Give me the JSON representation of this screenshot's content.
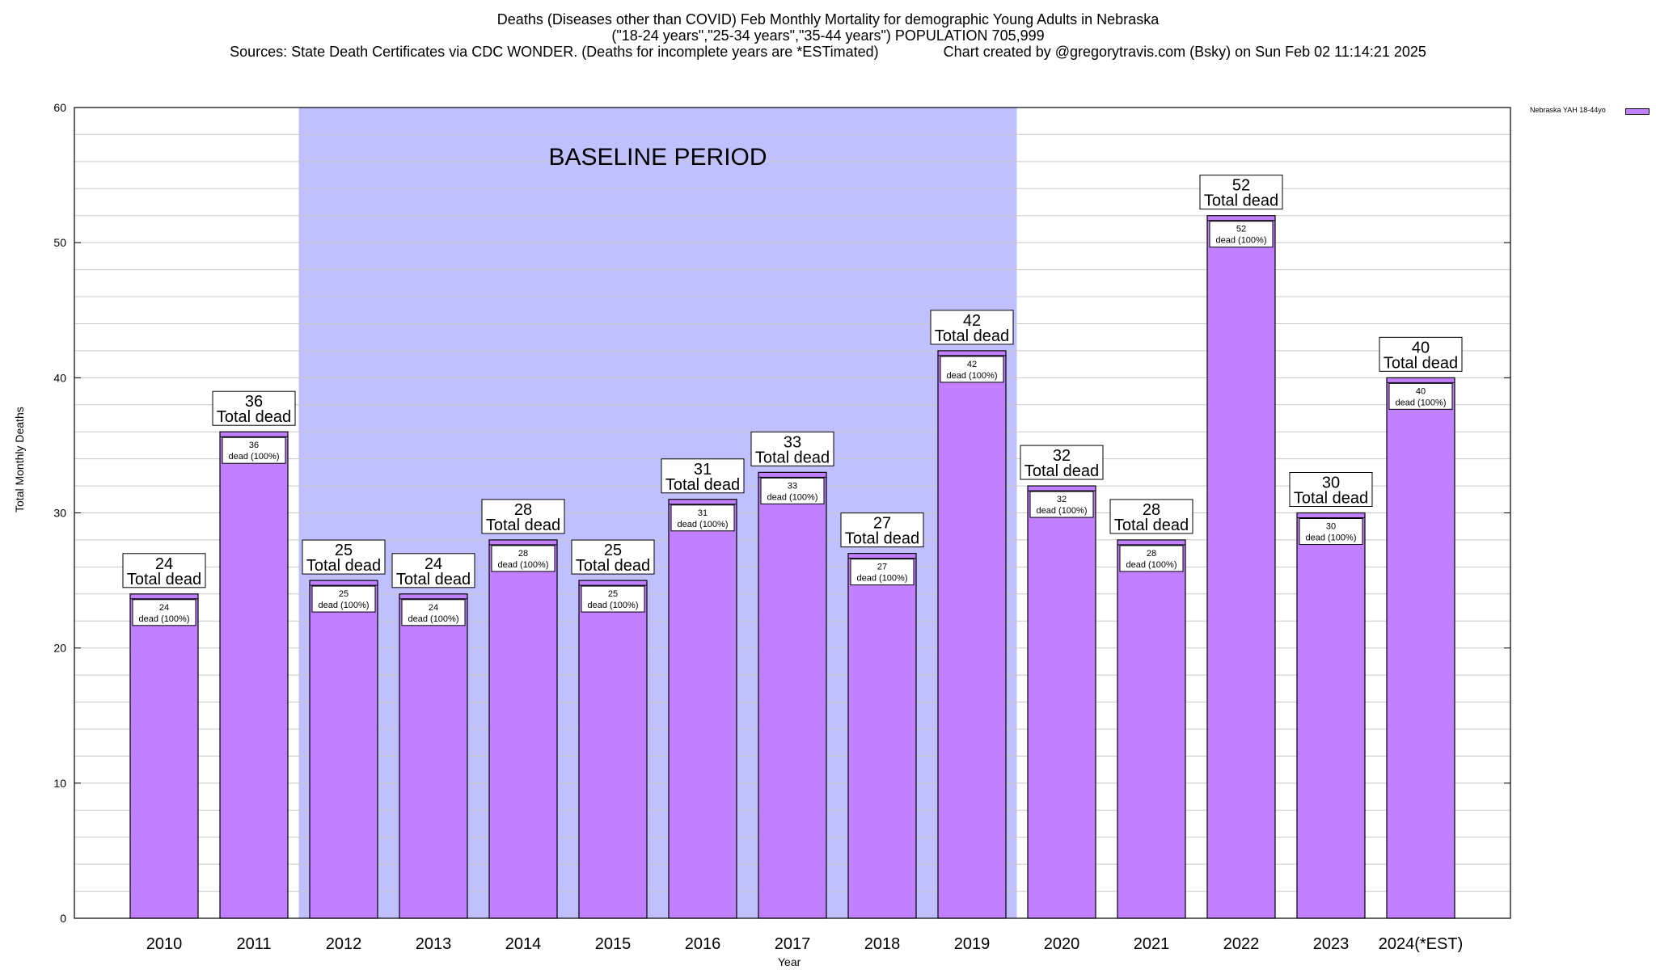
{
  "header": {
    "line1": "Deaths (Diseases other than COVID) Feb Monthly Mortality for demographic Young Adults in Nebraska",
    "line2": "(\"18-24 years\",\"25-34 years\",\"35-44 years\") POPULATION 705,999",
    "line3": "Sources: State Death Certificates via CDC WONDER. (Deaths for incomplete years are *ESTimated)                Chart created by @gregorytravis.com (Bsky) on Sun Feb 02 11:14:21 2025"
  },
  "chart_data": {
    "type": "bar",
    "title": "Deaths (Diseases other than COVID) Feb Monthly Mortality for demographic Young Adults in Nebraska",
    "xlabel": "Year",
    "ylabel": "Total Monthly Deaths",
    "ylim": [
      0,
      60
    ],
    "y_ticks": [
      0,
      10,
      20,
      30,
      40,
      50,
      60
    ],
    "grid": true,
    "legend_position": "top-right",
    "categories": [
      "2010",
      "2011",
      "2012",
      "2013",
      "2014",
      "2015",
      "2016",
      "2017",
      "2018",
      "2019",
      "2020",
      "2021",
      "2022",
      "2023",
      "2024(*EST)"
    ],
    "series": [
      {
        "name": "Nebraska YAH 18-44yo",
        "color": "#c080ff",
        "values": [
          24,
          36,
          25,
          24,
          28,
          25,
          31,
          33,
          27,
          42,
          32,
          28,
          52,
          30,
          40
        ]
      }
    ],
    "total_label": "Total dead",
    "inner_label_suffix": "dead (100%)",
    "baseline": {
      "label": "BASELINE PERIOD",
      "start_category": "2012",
      "end_category": "2019",
      "color": "#c0c0ff"
    }
  }
}
